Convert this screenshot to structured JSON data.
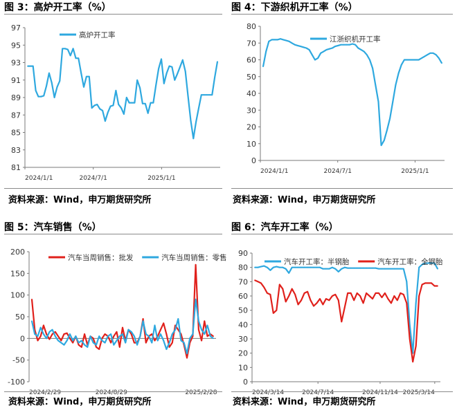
{
  "charts": [
    {
      "title": "图 3：高炉开工率（%）",
      "source": "资料来源：Wind，申万期货研究所",
      "chart_data": {
        "type": "line",
        "xlabels": [
          "2024/1/1",
          "2024/7/1",
          "2025/1/1"
        ],
        "ylim": [
          81,
          97
        ],
        "yticks": [
          81,
          83,
          85,
          87,
          89,
          91,
          93,
          95,
          97
        ],
        "legend_position": "top-left",
        "grid": false,
        "series": [
          {
            "name": "高炉开工率",
            "color": "#2EA8DF",
            "x": [
              0,
              1,
              2,
              3,
              4,
              5,
              6,
              7,
              8,
              9,
              10,
              11,
              12,
              13,
              14,
              15,
              16,
              17,
              18,
              19,
              20,
              21,
              22,
              23,
              24,
              25,
              26,
              27,
              28,
              29,
              30,
              31,
              32,
              33,
              34,
              35,
              36,
              37,
              38,
              39,
              40,
              41,
              42,
              43,
              44,
              45,
              46,
              47,
              48,
              49,
              50,
              51,
              52,
              53,
              54,
              55,
              56,
              57,
              58,
              59,
              60,
              61,
              62,
              63,
              64,
              65,
              66,
              67,
              68,
              69,
              70,
              71
            ],
            "values": [
              92.6,
              92.6,
              92.6,
              89.8,
              89.1,
              89.1,
              89.2,
              90.3,
              91.8,
              90.7,
              89.0,
              90.2,
              90.9,
              94.6,
              94.6,
              94.5,
              93.8,
              94.6,
              93.5,
              93.5,
              91.8,
              90.2,
              91.4,
              91.4,
              87.8,
              88.1,
              88.2,
              87.7,
              87.5,
              86.3,
              87.3,
              88.0,
              88.1,
              89.8,
              88.2,
              87.8,
              87.1,
              89.0,
              88.4,
              88.4,
              88.4,
              91.0,
              90.1,
              88.3,
              88.3,
              87.2,
              88.4,
              88.4,
              90.4,
              92.3,
              93.4,
              90.6,
              91.8,
              92.6,
              92.5,
              91.0,
              91.7,
              92.5,
              93.3,
              92.0,
              89.2,
              86.4,
              84.3,
              86.2,
              87.8,
              89.3,
              89.3,
              89.3,
              89.3,
              89.3,
              91.3,
              93.1
            ]
          }
        ]
      }
    },
    {
      "title": "图 4：下游织机开工率（%）",
      "source": "资料来源：Wind，申万期货研究所",
      "chart_data": {
        "type": "line",
        "xlabels": [
          "2024/1/1",
          "2024/7/1",
          "2025/1/1"
        ],
        "ylim": [
          0,
          80
        ],
        "yticks": [
          0,
          10,
          20,
          30,
          40,
          50,
          60,
          70,
          80
        ],
        "legend_position": "top-center",
        "grid": false,
        "series": [
          {
            "name": "江浙织机开工率",
            "color": "#2EA8DF",
            "x": [
              0,
              1,
              2,
              3,
              4,
              5,
              6,
              7,
              8,
              9,
              10,
              11,
              12,
              13,
              14,
              15,
              16,
              17,
              18,
              19,
              20,
              21,
              22,
              23,
              24,
              25,
              26,
              27,
              28,
              29,
              30,
              31,
              32,
              33,
              34,
              35,
              36,
              37,
              38,
              39,
              40,
              41,
              42,
              43,
              44,
              45,
              46,
              47,
              48,
              49,
              50,
              51,
              52,
              53,
              54,
              55,
              56,
              57,
              58,
              59,
              60,
              61,
              62
            ],
            "values": [
              56,
              65,
              71,
              72,
              72,
              72,
              72.5,
              72,
              71.5,
              71,
              70,
              69,
              68.5,
              68,
              67.5,
              67,
              66,
              63,
              60,
              61,
              64,
              65,
              66,
              66.5,
              67,
              68,
              68.5,
              69,
              69,
              69,
              69,
              69.5,
              69,
              67,
              66,
              65,
              63,
              60,
              55,
              45,
              35,
              9,
              12,
              18,
              25,
              35,
              45,
              52,
              57,
              60,
              60,
              60,
              60,
              60,
              60,
              61,
              62,
              63,
              64,
              64,
              63,
              61,
              58
            ]
          }
        ]
      }
    },
    {
      "title": "图 5：汽车销售（%）",
      "source": "资料来源：Wind，申万期货研究所",
      "chart_data": {
        "type": "line",
        "xlabels": [
          "2024/2/29",
          "2024/8/29",
          "2025/2/28"
        ],
        "ylim": [
          -100,
          200
        ],
        "yticks": [
          -100,
          -50,
          0,
          50,
          100,
          150,
          200
        ],
        "legend_position": "top",
        "grid": false,
        "series": [
          {
            "name": "汽车当周销售：批发",
            "color": "#E0201B",
            "x": [
              0,
              1,
              2,
              3,
              4,
              5,
              6,
              7,
              8,
              9,
              10,
              11,
              12,
              13,
              14,
              15,
              16,
              17,
              18,
              19,
              20,
              21,
              22,
              23,
              24,
              25,
              26,
              27,
              28,
              29,
              30,
              31,
              32,
              33,
              34,
              35,
              36,
              37,
              38,
              39,
              40,
              41,
              42,
              43,
              44,
              45,
              46,
              47,
              48,
              49,
              50,
              51,
              52,
              53,
              54,
              55,
              56,
              57,
              58,
              59,
              60,
              61,
              62
            ],
            "values": [
              90,
              20,
              -5,
              5,
              30,
              10,
              -2,
              10,
              15,
              5,
              -5,
              10,
              12,
              0,
              -10,
              5,
              -15,
              -20,
              10,
              -15,
              5,
              0,
              -20,
              -25,
              0,
              10,
              5,
              -10,
              5,
              15,
              -20,
              25,
              -5,
              20,
              10,
              -10,
              -10,
              5,
              45,
              -10,
              5,
              10,
              -5,
              5,
              20,
              35,
              10,
              -20,
              -10,
              30,
              20,
              10,
              -15,
              -45,
              -10,
              5,
              170,
              20,
              -5,
              40,
              5,
              10,
              5
            ]
          },
          {
            "name": "汽车当周销售：零售",
            "color": "#2EA8DF",
            "x": [
              0,
              1,
              2,
              3,
              4,
              5,
              6,
              7,
              8,
              9,
              10,
              11,
              12,
              13,
              14,
              15,
              16,
              17,
              18,
              19,
              20,
              21,
              22,
              23,
              24,
              25,
              26,
              27,
              28,
              29,
              30,
              31,
              32,
              33,
              34,
              35,
              36,
              37,
              38,
              39,
              40,
              41,
              42,
              43,
              44,
              45,
              46,
              47,
              48,
              49,
              50,
              51,
              52,
              53,
              54,
              55,
              56,
              57,
              58,
              59,
              60,
              61,
              62
            ],
            "values": [
              40,
              10,
              5,
              25,
              10,
              0,
              15,
              20,
              5,
              -5,
              -10,
              -15,
              -5,
              10,
              -5,
              5,
              -10,
              -5,
              -15,
              -20,
              5,
              -10,
              -15,
              5,
              -5,
              -10,
              5,
              10,
              -15,
              -5,
              5,
              10,
              -10,
              20,
              15,
              5,
              -15,
              5,
              40,
              10,
              5,
              -10,
              30,
              -5,
              10,
              -5,
              -25,
              -10,
              10,
              20,
              45,
              -5,
              -10,
              -35,
              0,
              10,
              90,
              40,
              20,
              10,
              30,
              5,
              0
            ]
          }
        ]
      }
    },
    {
      "title": "图 6：汽车开工率（%）",
      "source": "资料来源：Wind，申万期货研究所",
      "chart_data": {
        "type": "line",
        "xlabels": [
          "2024/3/14",
          "2024/7/14",
          "2024/11/14",
          "2025/3/14"
        ],
        "ylim": [
          0,
          90
        ],
        "yticks": [
          0,
          10,
          20,
          30,
          40,
          50,
          60,
          70,
          80,
          90
        ],
        "legend_position": "top",
        "grid": false,
        "series": [
          {
            "name": "汽车开工率：半钢胎",
            "color": "#2EA8DF",
            "x": [
              0,
              1,
              2,
              3,
              4,
              5,
              6,
              7,
              8,
              9,
              10,
              11,
              12,
              13,
              14,
              15,
              16,
              17,
              18,
              19,
              20,
              21,
              22,
              23,
              24,
              25,
              26,
              27,
              28,
              29,
              30,
              31,
              32,
              33,
              34,
              35,
              36,
              37,
              38,
              39,
              40,
              41,
              42,
              43,
              44,
              45,
              46,
              47,
              48,
              49,
              50,
              51,
              52,
              53,
              54,
              55,
              56,
              57,
              58,
              59
            ],
            "values": [
              80,
              80,
              80.5,
              81,
              80,
              78,
              80,
              80.5,
              80,
              80,
              79,
              76,
              80,
              80,
              80,
              80,
              80,
              80,
              80,
              80,
              80,
              80,
              79,
              79,
              79,
              80,
              79,
              77,
              79,
              80,
              79.5,
              79.5,
              79.5,
              79.5,
              79.5,
              79.5,
              79.5,
              79.5,
              79.5,
              79.5,
              79,
              79,
              79,
              79,
              79,
              79,
              79,
              79,
              79,
              70,
              40,
              20,
              55,
              80,
              82,
              83,
              83,
              83,
              83,
              79
            ]
          },
          {
            "name": "汽车开工率：全钢胎",
            "color": "#E0201B",
            "x": [
              0,
              1,
              2,
              3,
              4,
              5,
              6,
              7,
              8,
              9,
              10,
              11,
              12,
              13,
              14,
              15,
              16,
              17,
              18,
              19,
              20,
              21,
              22,
              23,
              24,
              25,
              26,
              27,
              28,
              29,
              30,
              31,
              32,
              33,
              34,
              35,
              36,
              37,
              38,
              39,
              40,
              41,
              42,
              43,
              44,
              45,
              46,
              47,
              48,
              49,
              50,
              51,
              52,
              53,
              54,
              55,
              56,
              57,
              58,
              59
            ],
            "values": [
              71,
              70,
              69,
              66,
              62,
              61,
              48,
              50,
              68,
              65,
              56,
              60,
              65,
              61,
              54,
              57,
              62,
              63,
              57,
              53,
              55,
              58,
              54,
              58,
              57,
              60,
              61,
              57,
              42,
              52,
              62,
              62,
              57,
              62,
              60,
              55,
              62,
              60,
              58,
              62,
              62,
              59,
              62,
              58,
              55,
              60,
              57,
              62,
              61,
              55,
              30,
              14,
              25,
              60,
              68,
              69,
              69,
              69,
              67,
              67
            ]
          }
        ]
      }
    }
  ]
}
